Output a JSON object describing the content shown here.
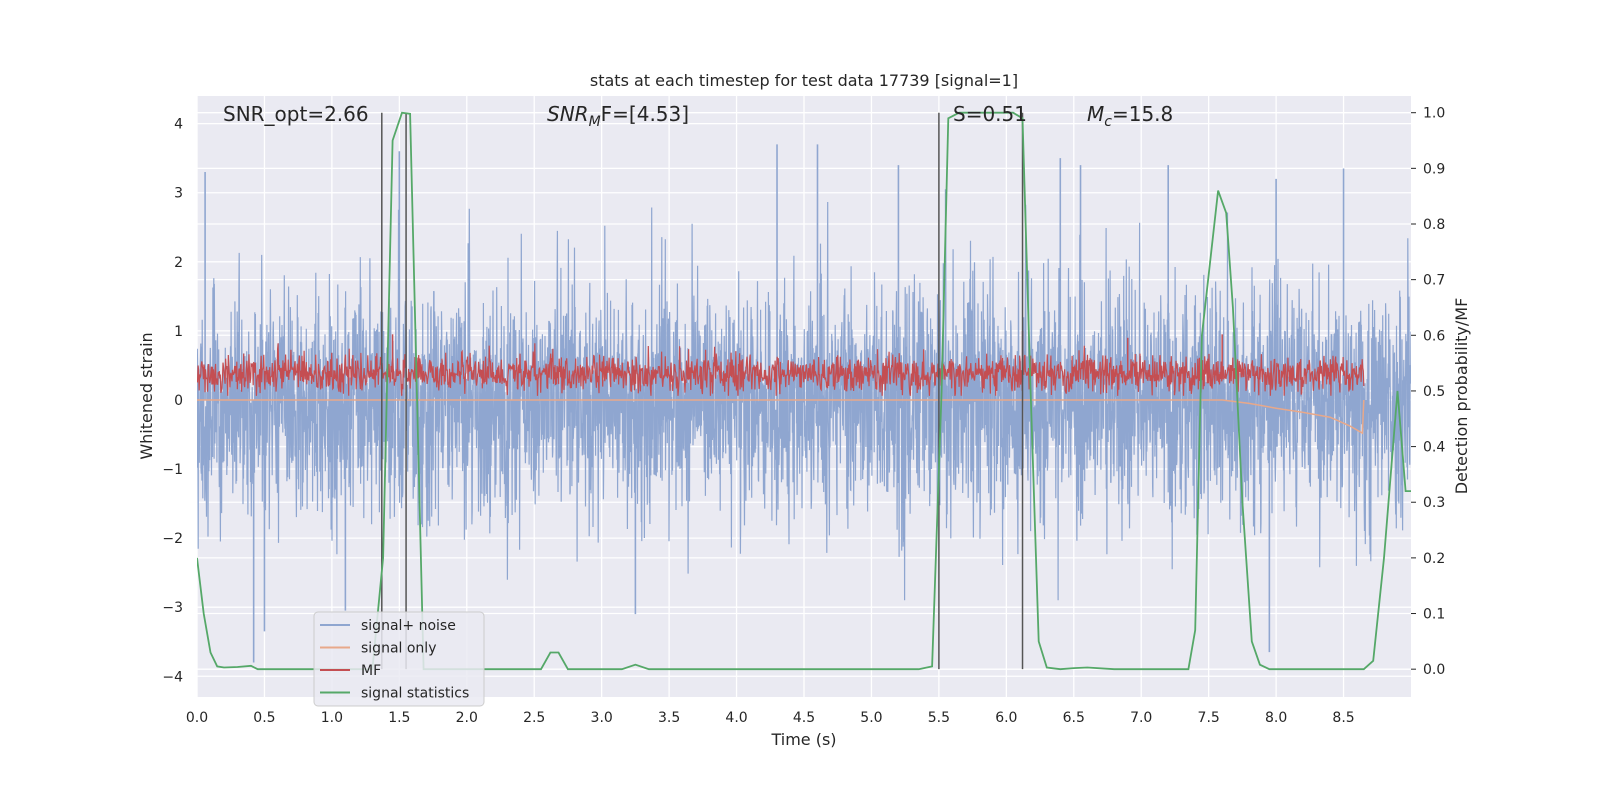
{
  "chart_data": {
    "type": "line",
    "title": "stats at each timestep for test data 17739 [signal=1]",
    "xlabel": "Time (s)",
    "ylabel": "Whitened strain",
    "y2label": "Detection probability/MF",
    "xlim": [
      0.0,
      9.0
    ],
    "ylim": [
      -4.3,
      4.4
    ],
    "y2lim": [
      -0.05,
      1.03
    ],
    "xticks": [
      0.0,
      0.5,
      1.0,
      1.5,
      2.0,
      2.5,
      3.0,
      3.5,
      4.0,
      4.5,
      5.0,
      5.5,
      6.0,
      6.5,
      7.0,
      7.5,
      8.0,
      8.5
    ],
    "yticks": [
      -4,
      -3,
      -2,
      -1,
      0,
      1,
      2,
      3,
      4
    ],
    "y2ticks": [
      0.0,
      0.1,
      0.2,
      0.3,
      0.4,
      0.5,
      0.6,
      0.7,
      0.8,
      0.9,
      1.0
    ],
    "grid": true,
    "legend_position": "lower-left",
    "annotations": {
      "snr_opt": "SNR_opt=2.66",
      "snr_mf": "SNR",
      "snr_mf_sub": "M",
      "snr_mf_rest": "F=[4.53]",
      "s_stat": "S=0.51",
      "mc_base": "M",
      "mc_sub": "c",
      "mc_rest": "=15.8"
    },
    "series": [
      {
        "name": "signal+ noise",
        "color": "#8fa6d0",
        "axis": "left",
        "style": "dense noise, envelope approx ±1.7 with spikes up to ±3.5",
        "spikes": [
          [
            0.06,
            3.3
          ],
          [
            0.42,
            -3.8
          ],
          [
            0.5,
            -3.35
          ],
          [
            1.1,
            -3.05
          ],
          [
            1.5,
            3.6
          ],
          [
            3.25,
            -3.1
          ],
          [
            4.3,
            3.7
          ],
          [
            4.6,
            3.7
          ],
          [
            5.2,
            3.4
          ],
          [
            5.55,
            3.05
          ],
          [
            6.4,
            3.5
          ],
          [
            6.55,
            3.4
          ],
          [
            7.2,
            3.4
          ],
          [
            7.95,
            -3.65
          ],
          [
            8.0,
            3.2
          ],
          [
            8.5,
            3.35
          ]
        ]
      },
      {
        "name": "signal only",
        "color": "#e8a88a",
        "axis": "left",
        "points": [
          [
            0.0,
            0.0
          ],
          [
            7.6,
            0.0
          ],
          [
            7.8,
            -0.05
          ],
          [
            8.0,
            -0.12
          ],
          [
            8.2,
            -0.18
          ],
          [
            8.4,
            -0.25
          ],
          [
            8.55,
            -0.38
          ],
          [
            8.64,
            -0.48
          ],
          [
            8.65,
            0.0
          ]
        ]
      },
      {
        "name": "MF",
        "color": "#c44e52",
        "axis": "left",
        "style": "dense trace between approx 0.1 and 0.8 until t=8.65",
        "spikes": [
          [
            1.45,
            0.95
          ],
          [
            6.12,
            1.0
          ],
          [
            6.9,
            0.9
          ],
          [
            7.6,
            0.95
          ]
        ]
      },
      {
        "name": "signal statistics",
        "color": "#55a868",
        "axis": "right",
        "points": [
          [
            0.0,
            0.2
          ],
          [
            0.05,
            0.1
          ],
          [
            0.1,
            0.03
          ],
          [
            0.15,
            0.005
          ],
          [
            0.2,
            0.003
          ],
          [
            0.3,
            0.004
          ],
          [
            0.4,
            0.006
          ],
          [
            0.45,
            0.0
          ],
          [
            1.3,
            0.0
          ],
          [
            1.38,
            0.2
          ],
          [
            1.45,
            0.95
          ],
          [
            1.52,
            1.0
          ],
          [
            1.58,
            0.998
          ],
          [
            1.62,
            0.6
          ],
          [
            1.68,
            0.0
          ],
          [
            2.55,
            0.0
          ],
          [
            2.62,
            0.03
          ],
          [
            2.68,
            0.03
          ],
          [
            2.75,
            0.0
          ],
          [
            3.15,
            0.0
          ],
          [
            3.25,
            0.008
          ],
          [
            3.35,
            0.0
          ],
          [
            5.35,
            0.0
          ],
          [
            5.45,
            0.005
          ],
          [
            5.52,
            0.5
          ],
          [
            5.57,
            0.99
          ],
          [
            5.65,
            1.0
          ],
          [
            6.05,
            1.0
          ],
          [
            6.12,
            0.99
          ],
          [
            6.18,
            0.5
          ],
          [
            6.24,
            0.05
          ],
          [
            6.3,
            0.003
          ],
          [
            6.4,
            0.0
          ],
          [
            6.5,
            0.002
          ],
          [
            6.6,
            0.003
          ],
          [
            6.8,
            0.0
          ],
          [
            7.35,
            0.0
          ],
          [
            7.4,
            0.07
          ],
          [
            7.45,
            0.6
          ],
          [
            7.57,
            0.86
          ],
          [
            7.63,
            0.82
          ],
          [
            7.68,
            0.65
          ],
          [
            7.75,
            0.3
          ],
          [
            7.82,
            0.05
          ],
          [
            7.88,
            0.008
          ],
          [
            7.95,
            0.0
          ],
          [
            8.65,
            0.0
          ],
          [
            8.72,
            0.015
          ],
          [
            8.8,
            0.2
          ],
          [
            8.9,
            0.5
          ],
          [
            8.96,
            0.32
          ],
          [
            9.0,
            0.32
          ]
        ]
      }
    ],
    "vertical_lines": [
      1.37,
      1.55,
      5.5,
      6.12
    ],
    "vertical_lines_color": "#555555"
  }
}
